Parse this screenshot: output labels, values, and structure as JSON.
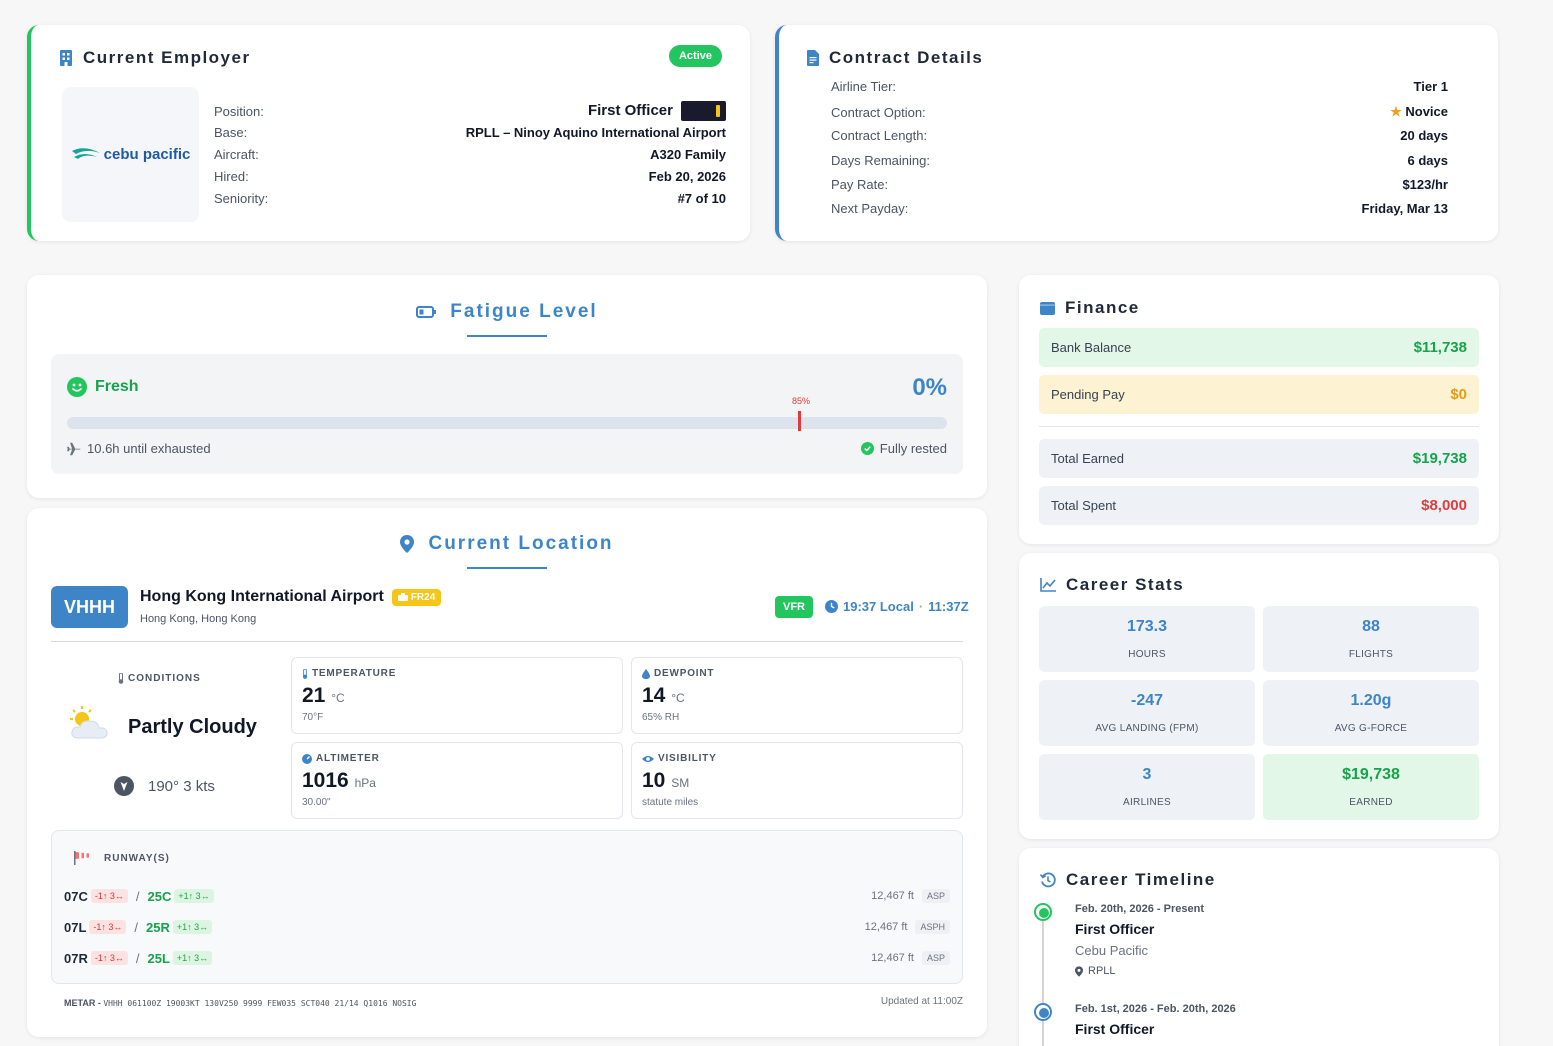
{
  "employer": {
    "title": "Current Employer",
    "status": "Active",
    "logo_text": "cebu pacific",
    "fields": [
      {
        "label": "Position:",
        "value": "First Officer"
      },
      {
        "label": "Base:",
        "value": "RPLL – Ninoy Aquino International Airport"
      },
      {
        "label": "Aircraft:",
        "value": "A320 Family"
      },
      {
        "label": "Hired:",
        "value": "Feb 20, 2026"
      },
      {
        "label": "Seniority:",
        "value": "#7 of 10"
      }
    ]
  },
  "contract": {
    "title": "Contract Details",
    "fields": [
      {
        "label": "Airline Tier:",
        "value": "Tier 1"
      },
      {
        "label": "Contract Option:",
        "value": "Novice"
      },
      {
        "label": "Contract Length:",
        "value": "20 days"
      },
      {
        "label": "Days Remaining:",
        "value": "6 days"
      },
      {
        "label": "Pay Rate:",
        "value": "$123/hr"
      },
      {
        "label": "Next Payday:",
        "value": "Friday, Mar 13"
      }
    ]
  },
  "fatigue": {
    "title": "Fatigue Level",
    "status": "Fresh",
    "percent_label": "0%",
    "level": 0,
    "threshold_label": "85%",
    "threshold": 0.85,
    "until_exhausted": "10.6h until exhausted",
    "rest_status": "Fully rested"
  },
  "location": {
    "title": "Current Location",
    "icao": "VHHH",
    "airport_name": "Hong Kong International Airport",
    "fr24": "FR24",
    "city": "Hong Kong, Hong Kong",
    "flight_rules": "VFR",
    "local_time": "19:37 Local",
    "zulu_time": "11:37Z",
    "conditions_label": "CONDITIONS",
    "conditions": "Partly Cloudy",
    "wind": "190° 3 kts",
    "temperature": {
      "label": "TEMPERATURE",
      "value": "21",
      "unit": "°C",
      "sub": "70°F"
    },
    "dewpoint": {
      "label": "DEWPOINT",
      "value": "14",
      "unit": "°C",
      "sub": "65% RH"
    },
    "altimeter": {
      "label": "ALTIMETER",
      "value": "1016",
      "unit": "hPa",
      "sub": "30.00\""
    },
    "visibility": {
      "label": "VISIBILITY",
      "value": "10",
      "unit": "SM",
      "sub": "statute miles"
    },
    "runways_label": "RUNWAY(S)",
    "runways": [
      {
        "a": "07C",
        "a_wind": "-1↑ 3↔",
        "b": "25C",
        "b_wind": "+1↑ 3↔",
        "length": "12,467 ft",
        "surface": "ASP"
      },
      {
        "a": "07L",
        "a_wind": "-1↑ 3↔",
        "b": "25R",
        "b_wind": "+1↑ 3↔",
        "length": "12,467 ft",
        "surface": "ASPH"
      },
      {
        "a": "07R",
        "a_wind": "-1↑ 3↔",
        "b": "25L",
        "b_wind": "+1↑ 3↔",
        "length": "12,467 ft",
        "surface": "ASP"
      }
    ],
    "metar_label": "METAR -",
    "metar": "VHHH 061100Z 19003KT 130V250 9999 FEW035 SCT040 21/14 Q1016 NOSIG",
    "updated": "Updated at 11:00Z"
  },
  "finance": {
    "title": "Finance",
    "rows": [
      {
        "label": "Bank Balance",
        "value": "$11,738"
      },
      {
        "label": "Pending Pay",
        "value": "$0"
      },
      {
        "label": "Total Earned",
        "value": "$19,738"
      },
      {
        "label": "Total Spent",
        "value": "$8,000"
      }
    ]
  },
  "stats": {
    "title": "Career Stats",
    "items": [
      {
        "value": "173.3",
        "label": "HOURS"
      },
      {
        "value": "88",
        "label": "FLIGHTS"
      },
      {
        "value": "-247",
        "label": "AVG LANDING (FPM)"
      },
      {
        "value": "1.20g",
        "label": "AVG G-FORCE"
      },
      {
        "value": "3",
        "label": "AIRLINES"
      },
      {
        "value": "$19,738",
        "label": "EARNED"
      }
    ]
  },
  "timeline": {
    "title": "Career Timeline",
    "entries": [
      {
        "date": "Feb. 20th, 2026 - Present",
        "role": "First Officer",
        "company": "Cebu Pacific",
        "base": "RPLL"
      },
      {
        "date": "Feb. 1st, 2026 - Feb. 20th, 2026",
        "role": "First Officer"
      }
    ]
  },
  "colors": {
    "accent": "#3d85c6",
    "success": "#22c55e",
    "danger": "#e03b3b",
    "warning": "#e59a1b"
  }
}
